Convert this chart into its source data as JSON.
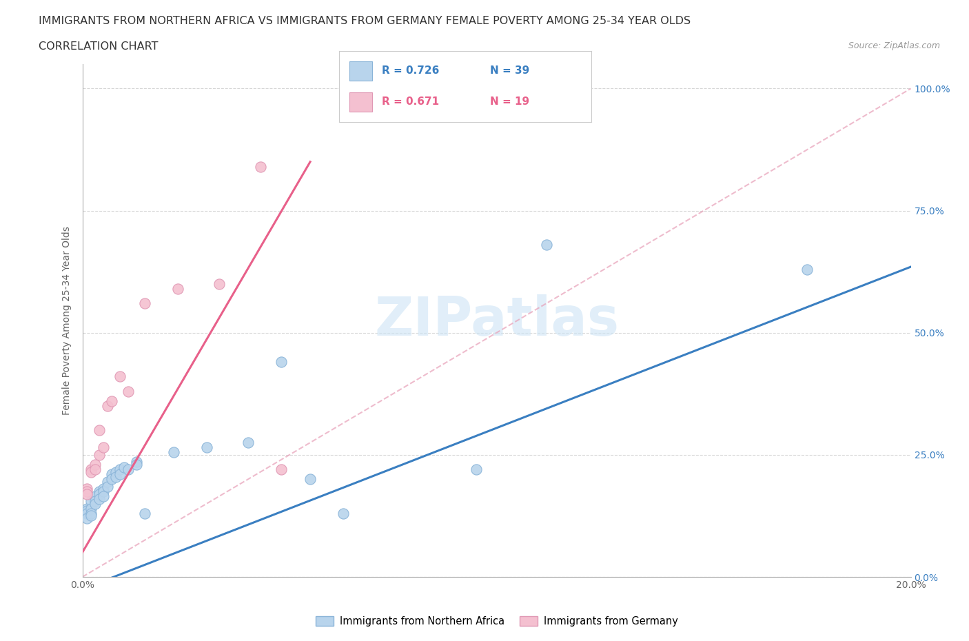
{
  "title_line1": "IMMIGRANTS FROM NORTHERN AFRICA VS IMMIGRANTS FROM GERMANY FEMALE POVERTY AMONG 25-34 YEAR OLDS",
  "title_line2": "CORRELATION CHART",
  "source": "Source: ZipAtlas.com",
  "ylabel": "Female Poverty Among 25-34 Year Olds",
  "watermark": "ZIPatlas",
  "xlim": [
    0.0,
    0.2
  ],
  "ylim": [
    0.0,
    1.05
  ],
  "yticks": [
    0.0,
    0.25,
    0.5,
    0.75,
    1.0
  ],
  "ytick_labels": [
    "0.0%",
    "25.0%",
    "50.0%",
    "75.0%",
    "100.0%"
  ],
  "xticks": [
    0.0,
    0.05,
    0.1,
    0.15,
    0.2
  ],
  "xtick_labels": [
    "0.0%",
    "",
    "",
    "",
    "20.0%"
  ],
  "R_blue": 0.726,
  "N_blue": 39,
  "R_pink": 0.671,
  "N_pink": 19,
  "color_blue": "#b8d4ec",
  "color_pink": "#f4c0d0",
  "color_blue_line": "#3a7fc1",
  "color_pink_line": "#e8608a",
  "color_dashed": "#e8a0b8",
  "blue_line_x": [
    0.0,
    0.2
  ],
  "blue_line_y": [
    -0.025,
    0.635
  ],
  "pink_line_x": [
    0.0,
    0.055
  ],
  "pink_line_y": [
    0.05,
    0.85
  ],
  "scatter_blue": [
    [
      0.001,
      0.14
    ],
    [
      0.001,
      0.135
    ],
    [
      0.001,
      0.13
    ],
    [
      0.001,
      0.12
    ],
    [
      0.002,
      0.155
    ],
    [
      0.002,
      0.14
    ],
    [
      0.002,
      0.13
    ],
    [
      0.002,
      0.125
    ],
    [
      0.003,
      0.165
    ],
    [
      0.003,
      0.155
    ],
    [
      0.003,
      0.15
    ],
    [
      0.004,
      0.175
    ],
    [
      0.004,
      0.17
    ],
    [
      0.004,
      0.16
    ],
    [
      0.005,
      0.18
    ],
    [
      0.005,
      0.175
    ],
    [
      0.005,
      0.165
    ],
    [
      0.006,
      0.195
    ],
    [
      0.006,
      0.185
    ],
    [
      0.007,
      0.21
    ],
    [
      0.007,
      0.2
    ],
    [
      0.008,
      0.215
    ],
    [
      0.008,
      0.205
    ],
    [
      0.009,
      0.22
    ],
    [
      0.009,
      0.21
    ],
    [
      0.01,
      0.225
    ],
    [
      0.011,
      0.22
    ],
    [
      0.013,
      0.235
    ],
    [
      0.013,
      0.23
    ],
    [
      0.015,
      0.13
    ],
    [
      0.022,
      0.255
    ],
    [
      0.03,
      0.265
    ],
    [
      0.04,
      0.275
    ],
    [
      0.048,
      0.44
    ],
    [
      0.055,
      0.2
    ],
    [
      0.063,
      0.13
    ],
    [
      0.095,
      0.22
    ],
    [
      0.112,
      0.68
    ],
    [
      0.175,
      0.63
    ]
  ],
  "scatter_pink": [
    [
      0.001,
      0.18
    ],
    [
      0.001,
      0.175
    ],
    [
      0.001,
      0.17
    ],
    [
      0.002,
      0.22
    ],
    [
      0.002,
      0.215
    ],
    [
      0.003,
      0.23
    ],
    [
      0.003,
      0.22
    ],
    [
      0.004,
      0.25
    ],
    [
      0.004,
      0.3
    ],
    [
      0.005,
      0.265
    ],
    [
      0.006,
      0.35
    ],
    [
      0.007,
      0.36
    ],
    [
      0.009,
      0.41
    ],
    [
      0.011,
      0.38
    ],
    [
      0.015,
      0.56
    ],
    [
      0.023,
      0.59
    ],
    [
      0.033,
      0.6
    ],
    [
      0.043,
      0.84
    ],
    [
      0.048,
      0.22
    ]
  ],
  "legend_label_blue": "Immigrants from Northern Africa",
  "legend_label_pink": "Immigrants from Germany",
  "title_fontsize": 11.5,
  "axis_label_fontsize": 10,
  "tick_fontsize": 10
}
